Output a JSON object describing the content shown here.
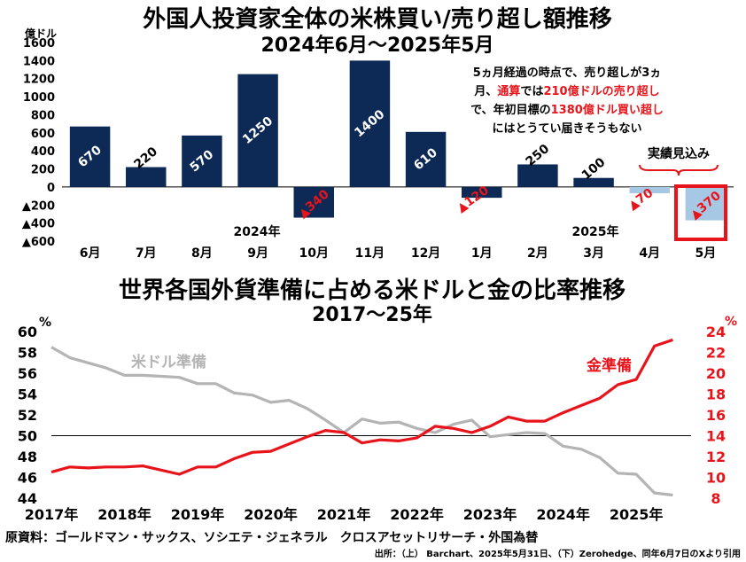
{
  "chart_data": [
    {
      "type": "bar",
      "title": "外国人投資家全体の米株買い/売り超し額推移",
      "subtitle": "2024年6月～2025年5月",
      "unit": "億ドル",
      "categories": [
        "6月",
        "7月",
        "8月",
        "9月",
        "10月",
        "11月",
        "12月",
        "1月",
        "2月",
        "3月",
        "4月",
        "5月"
      ],
      "values": [
        670,
        220,
        570,
        1250,
        -340,
        1400,
        610,
        -120,
        250,
        100,
        -70,
        -370
      ],
      "value_labels": [
        "670",
        "220",
        "570",
        "1250",
        "▲340",
        "1400",
        "610",
        "▲120",
        "250",
        "100",
        "▲70",
        "▲370"
      ],
      "estimated": [
        false,
        false,
        false,
        false,
        false,
        false,
        false,
        false,
        false,
        false,
        true,
        true
      ],
      "ylim": [
        -600,
        1600
      ],
      "yticks": [
        1600,
        1400,
        1200,
        1000,
        800,
        600,
        400,
        200,
        0,
        -200,
        -400,
        -600
      ],
      "ytick_labels": [
        "1600",
        "1400",
        "1200",
        "1000",
        "800",
        "600",
        "400",
        "200",
        "0",
        "▲200",
        "▲400",
        "▲600"
      ],
      "year_labels": [
        "2024年",
        "2025年"
      ],
      "estimate_label": "実績見込み",
      "annotation": {
        "line1": "5ヵ月経過の時点で、売り超しが3ヵ",
        "line2a": "月、",
        "line2b": "通算",
        "line2c": "では",
        "line2d": "210億ドルの売り超し",
        "line3a": "で、年初目標の",
        "line3b": "1380億ドル買い超し",
        "line4": "にはとうてい届きそうもない"
      },
      "colors": {
        "actual": "#0d2a56",
        "estimate": "#a6c8e4",
        "negative_label": "#e8141b",
        "highlight_box": "#e8141b"
      }
    },
    {
      "type": "line",
      "title": "世界各国外貨準備に占める米ドルと金の比率推移",
      "subtitle": "2017～25年",
      "left_unit": "%",
      "right_unit": "%",
      "x_labels": [
        "2017年",
        "2018年",
        "2019年",
        "2020年",
        "2021年",
        "2022年",
        "2023年",
        "2024年",
        "2025年"
      ],
      "x_range": [
        2017.0,
        2025.75
      ],
      "left_ylim": [
        44,
        60
      ],
      "left_ticks": [
        60,
        58,
        56,
        54,
        52,
        50,
        48,
        46,
        44
      ],
      "right_ylim": [
        8,
        24
      ],
      "right_ticks": [
        24,
        22,
        20,
        18,
        16,
        14,
        12,
        10,
        8
      ],
      "series": [
        {
          "name": "米ドル準備",
          "axis": "left",
          "color": "#b4b4b4",
          "x": [
            2017.0,
            2017.25,
            2017.5,
            2017.75,
            2018.0,
            2018.25,
            2018.5,
            2018.75,
            2019.0,
            2019.25,
            2019.5,
            2019.75,
            2020.0,
            2020.25,
            2020.5,
            2020.75,
            2021.0,
            2021.25,
            2021.5,
            2021.75,
            2022.0,
            2022.25,
            2022.5,
            2022.75,
            2023.0,
            2023.25,
            2023.5,
            2023.75,
            2024.0,
            2024.25,
            2024.5,
            2024.75,
            2025.0,
            2025.25,
            2025.5
          ],
          "y": [
            58.5,
            57.5,
            57.0,
            56.5,
            55.8,
            55.8,
            55.7,
            55.6,
            55.0,
            55.0,
            54.1,
            53.9,
            53.2,
            53.4,
            52.6,
            51.5,
            50.3,
            51.6,
            51.2,
            51.3,
            50.7,
            50.3,
            51.1,
            51.5,
            49.9,
            50.1,
            50.3,
            50.2,
            49.0,
            48.7,
            47.9,
            46.4,
            46.3,
            44.5,
            44.3
          ]
        },
        {
          "name": "金準備",
          "axis": "right",
          "color": "#e8141b",
          "x": [
            2017.0,
            2017.25,
            2017.5,
            2017.75,
            2018.0,
            2018.25,
            2018.5,
            2018.75,
            2019.0,
            2019.25,
            2019.5,
            2019.75,
            2020.0,
            2020.25,
            2020.5,
            2020.75,
            2021.0,
            2021.25,
            2021.5,
            2021.75,
            2022.0,
            2022.25,
            2022.5,
            2022.75,
            2023.0,
            2023.25,
            2023.5,
            2023.75,
            2024.0,
            2024.25,
            2024.5,
            2024.75,
            2025.0,
            2025.25,
            2025.5
          ],
          "y": [
            10.5,
            11.0,
            10.9,
            11.0,
            11.0,
            11.1,
            10.7,
            10.3,
            11.0,
            11.0,
            11.8,
            12.4,
            12.5,
            13.2,
            13.9,
            14.5,
            14.3,
            13.3,
            13.6,
            13.5,
            13.8,
            14.9,
            14.7,
            14.3,
            14.9,
            15.8,
            15.4,
            15.4,
            16.2,
            16.9,
            17.6,
            18.9,
            19.4,
            22.6,
            23.2
          ]
        }
      ],
      "reference_line_value": 50
    }
  ],
  "footer": {
    "source": "原資料：ゴールドマン・サックス、ソシエテ・ジェネラル　クロスアセットリサーチ・外国為替",
    "credit": "出所：（上） Barchart、2025年5月31日、（下）Zerohedge、同年6月7日のXより引用"
  }
}
